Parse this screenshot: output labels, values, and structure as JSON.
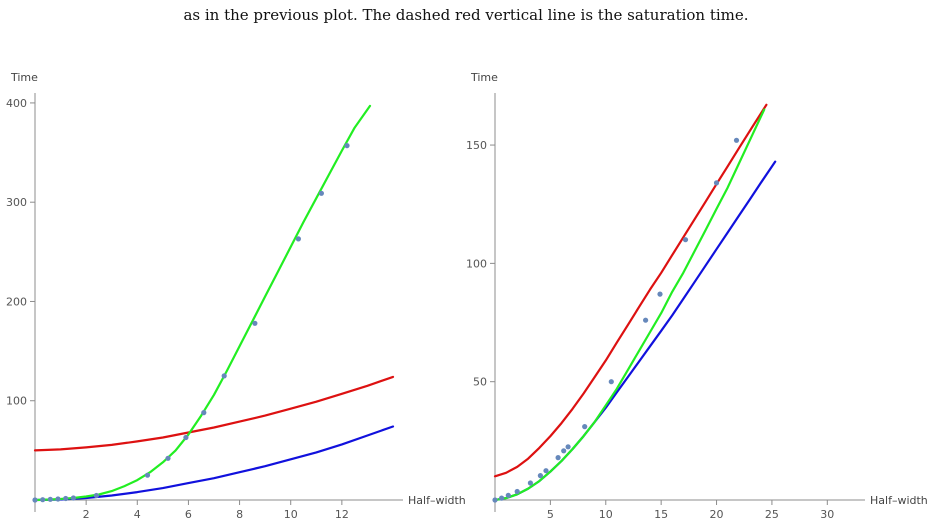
{
  "caption": "as in the previous plot. The dashed red vertical line is the saturation time.",
  "colors": {
    "green": "#22ee22",
    "red": "#dd1111",
    "blue": "#1111dd",
    "points": "#6688bb"
  },
  "chart_data": [
    {
      "type": "line",
      "xlabel": "Half–width",
      "ylabel": "Time",
      "xlim": [
        0,
        14
      ],
      "ylim": [
        0,
        410
      ],
      "xticks": [
        2,
        4,
        6,
        8,
        10,
        12
      ],
      "yticks": [
        100,
        200,
        300,
        400
      ],
      "series": [
        {
          "color": "#22ee22",
          "x": [
            0,
            0.5,
            1,
            1.5,
            2,
            2.5,
            3,
            3.5,
            4,
            4.5,
            5,
            5.5,
            6,
            6.5,
            7,
            7.5,
            8,
            8.5,
            9,
            9.5,
            10,
            10.5,
            11,
            11.5,
            12,
            12.5,
            13.1
          ],
          "y": [
            0,
            0.4,
            1,
            2,
            3.5,
            5.5,
            9,
            14,
            20,
            28,
            38,
            50,
            66,
            85,
            106,
            130,
            155,
            180,
            205,
            230,
            255,
            280,
            304,
            328,
            352,
            375,
            397
          ]
        },
        {
          "color": "#dd1111",
          "x": [
            0,
            1,
            2,
            3,
            4,
            5,
            6,
            7,
            8,
            9,
            10,
            11,
            12,
            13,
            14
          ],
          "y": [
            50,
            51,
            53,
            55.5,
            59,
            63,
            68,
            73,
            79,
            85,
            92,
            99,
            107,
            115,
            124
          ]
        },
        {
          "color": "#1111dd",
          "x": [
            0,
            1,
            2,
            3,
            4,
            5,
            6,
            7,
            8,
            9,
            10,
            11,
            12,
            13,
            14
          ],
          "y": [
            0,
            0.5,
            2,
            4.5,
            8,
            12,
            17,
            22,
            28,
            34,
            41,
            48,
            56,
            65,
            74
          ]
        }
      ],
      "points": {
        "x": [
          0,
          0.3,
          0.6,
          0.9,
          1.2,
          1.5,
          2.4,
          4.4,
          5.2,
          5.9,
          6.6,
          7.4,
          8.6,
          10.3,
          11.2,
          12.2
        ],
        "y": [
          0,
          0.3,
          0.7,
          1,
          1.5,
          2,
          4.5,
          25,
          42,
          63,
          88,
          125,
          178,
          263,
          309,
          357
        ]
      }
    },
    {
      "type": "line",
      "xlabel": "Half–width",
      "ylabel": "Time",
      "xlim": [
        0,
        32.5
      ],
      "ylim": [
        0,
        172
      ],
      "xticks": [
        5,
        10,
        15,
        20,
        25,
        30
      ],
      "yticks": [
        50,
        100,
        150
      ],
      "series": [
        {
          "color": "#22ee22",
          "x": [
            0,
            1,
            2,
            3,
            4,
            5,
            6,
            7,
            8,
            9,
            10,
            11,
            12,
            13,
            14,
            15,
            16,
            17,
            18,
            19,
            20,
            21,
            22,
            23,
            24.3
          ],
          "y": [
            0,
            0.8,
            2.4,
            4.8,
            8,
            12,
            16.5,
            21.5,
            27,
            33,
            40,
            47,
            55,
            63,
            71,
            79,
            88,
            96,
            105,
            114,
            123,
            132,
            142,
            152,
            165
          ]
        },
        {
          "color": "#dd1111",
          "x": [
            0,
            1,
            2,
            3,
            4,
            5,
            6,
            7,
            8,
            9,
            10,
            11,
            12,
            13,
            14,
            15,
            16,
            17,
            18,
            19,
            20,
            21,
            22,
            23,
            24.5
          ],
          "y": [
            10,
            11.5,
            14,
            17.5,
            22,
            27,
            32.5,
            38.5,
            45,
            52,
            59,
            66.5,
            74,
            81.5,
            89,
            96,
            103.5,
            111,
            118.5,
            126,
            133.5,
            141,
            148.5,
            156,
            167
          ]
        },
        {
          "color": "#1111dd",
          "x": [
            0,
            1,
            2,
            3,
            4,
            5,
            6,
            7,
            8,
            9,
            10,
            11,
            12,
            13,
            14,
            15,
            16,
            17,
            18,
            19,
            20,
            21,
            22,
            23,
            24,
            25.3
          ],
          "y": [
            0,
            0.8,
            2.4,
            4.8,
            8,
            12,
            16.5,
            21.5,
            27,
            33,
            39,
            45.5,
            52,
            58.5,
            65,
            71.5,
            78,
            85,
            92,
            99,
            106,
            113,
            120,
            127,
            134,
            143
          ]
        }
      ],
      "points": {
        "x": [
          0,
          0.6,
          1.2,
          2,
          3.2,
          4.1,
          4.6,
          5.7,
          6.2,
          6.6,
          8.1,
          10.5,
          13.6,
          14.9,
          17.2,
          20,
          21.8
        ],
        "y": [
          0,
          0.8,
          2,
          3.6,
          7.2,
          10.3,
          12.4,
          17.9,
          20.8,
          22.5,
          31,
          50,
          76,
          87,
          110,
          134,
          152
        ]
      }
    }
  ]
}
